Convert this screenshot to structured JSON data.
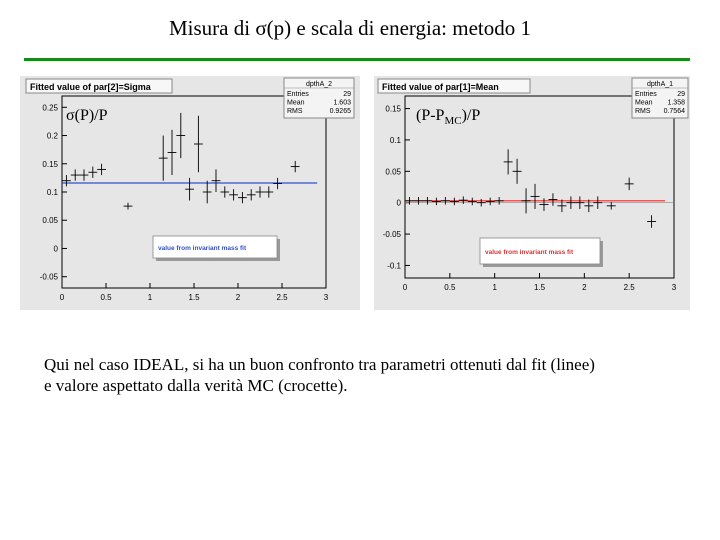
{
  "slide": {
    "title": "Misura di σ(p) e scala di energia: metodo 1",
    "caption_line1": "Qui nel caso IDEAL, si ha un buon confronto tra parametri ottenuti dal fit (linee)",
    "caption_line2": "e valore aspettato dalla verità MC (crocette)."
  },
  "colors": {
    "rule": "#1a8a1a",
    "frame_bg": "#e6e6e6",
    "fit_line_left": "#3050d0",
    "fit_line_right": "#e03030"
  },
  "chart_data": [
    {
      "type": "scatter",
      "title": "Fitted value of par[2]=Sigma",
      "ylabel": "σ(P)/P",
      "legend": "value from invariant mass fit",
      "stats": {
        "name": "dpthA_2",
        "rows": [
          [
            "Entries",
            "29"
          ],
          [
            "Mean",
            "1.603"
          ],
          [
            "RMS",
            "0.9265"
          ]
        ]
      },
      "xlim": [
        0,
        3
      ],
      "ylim": [
        -0.07,
        0.27
      ],
      "xticks": [
        "0",
        "0.5",
        "1",
        "1.5",
        "2",
        "2.5",
        "3"
      ],
      "yticks": [
        "-0.05",
        "0",
        "0.05",
        "0.1",
        "0.15",
        "0.2",
        "0.25"
      ],
      "fit_value": 0.116,
      "points": [
        {
          "x": 0.05,
          "y": 0.12,
          "ex": 0.05,
          "ey": 0.01
        },
        {
          "x": 0.15,
          "y": 0.13,
          "ex": 0.05,
          "ey": 0.01
        },
        {
          "x": 0.25,
          "y": 0.13,
          "ex": 0.05,
          "ey": 0.01
        },
        {
          "x": 0.35,
          "y": 0.135,
          "ex": 0.05,
          "ey": 0.01
        },
        {
          "x": 0.45,
          "y": 0.14,
          "ex": 0.05,
          "ey": 0.01
        },
        {
          "x": 0.75,
          "y": 0.075,
          "ex": 0.05,
          "ey": 0
        },
        {
          "x": 1.15,
          "y": 0.16,
          "ex": 0.05,
          "ey": 0.04
        },
        {
          "x": 1.25,
          "y": 0.17,
          "ex": 0.05,
          "ey": 0.04
        },
        {
          "x": 1.35,
          "y": 0.2,
          "ex": 0.05,
          "ey": 0.04
        },
        {
          "x": 1.45,
          "y": 0.105,
          "ex": 0.05,
          "ey": 0.02
        },
        {
          "x": 1.55,
          "y": 0.185,
          "ex": 0.05,
          "ey": 0.05
        },
        {
          "x": 1.65,
          "y": 0.1,
          "ex": 0.05,
          "ey": 0.02
        },
        {
          "x": 1.75,
          "y": 0.12,
          "ex": 0.05,
          "ey": 0.02
        },
        {
          "x": 1.85,
          "y": 0.1,
          "ex": 0.05,
          "ey": 0.01
        },
        {
          "x": 1.95,
          "y": 0.095,
          "ex": 0.05,
          "ey": 0.01
        },
        {
          "x": 2.05,
          "y": 0.09,
          "ex": 0.05,
          "ey": 0.01
        },
        {
          "x": 2.15,
          "y": 0.095,
          "ex": 0.05,
          "ey": 0.01
        },
        {
          "x": 2.25,
          "y": 0.1,
          "ex": 0.05,
          "ey": 0.01
        },
        {
          "x": 2.35,
          "y": 0.1,
          "ex": 0.05,
          "ey": 0.01
        },
        {
          "x": 2.45,
          "y": 0.115,
          "ex": 0.05,
          "ey": 0.01
        },
        {
          "x": 2.65,
          "y": 0.145,
          "ex": 0.05,
          "ey": 0.01
        }
      ]
    },
    {
      "type": "scatter",
      "title": "Fitted value of par[1]=Mean",
      "ylabel": "(P-P_MC)/P",
      "ylabel_main": "(P-P",
      "ylabel_sub": "MC",
      "ylabel_end": ")/P",
      "legend": "value from invariant mass fit",
      "stats": {
        "name": "dpthA_1",
        "rows": [
          [
            "Entries",
            "29"
          ],
          [
            "Mean",
            "1.358"
          ],
          [
            "RMS",
            "0.7564"
          ]
        ]
      },
      "xlim": [
        0,
        3
      ],
      "ylim": [
        -0.12,
        0.17
      ],
      "xticks": [
        "0",
        "0.5",
        "1",
        "1.5",
        "2",
        "2.5",
        "3"
      ],
      "yticks": [
        "-0.1",
        "-0.05",
        "0",
        "0.05",
        "0.1",
        "0.15"
      ],
      "fit_value": 0.003,
      "points": [
        {
          "x": 0.05,
          "y": 0.003,
          "ex": 0.05,
          "ey": 0
        },
        {
          "x": 0.15,
          "y": 0.003,
          "ex": 0.05,
          "ey": 0
        },
        {
          "x": 0.25,
          "y": 0.003,
          "ex": 0.05,
          "ey": 0
        },
        {
          "x": 0.35,
          "y": 0.002,
          "ex": 0.05,
          "ey": 0
        },
        {
          "x": 0.45,
          "y": 0.003,
          "ex": 0.05,
          "ey": 0
        },
        {
          "x": 0.55,
          "y": 0.002,
          "ex": 0.05,
          "ey": 0
        },
        {
          "x": 0.65,
          "y": 0.004,
          "ex": 0.05,
          "ey": 0
        },
        {
          "x": 0.75,
          "y": 0.002,
          "ex": 0.05,
          "ey": 0
        },
        {
          "x": 0.85,
          "y": 0.0,
          "ex": 0.05,
          "ey": 0
        },
        {
          "x": 0.95,
          "y": 0.002,
          "ex": 0.05,
          "ey": 0
        },
        {
          "x": 1.05,
          "y": 0.003,
          "ex": 0.05,
          "ey": 0
        },
        {
          "x": 1.15,
          "y": 0.065,
          "ex": 0.05,
          "ey": 0.02
        },
        {
          "x": 1.25,
          "y": 0.05,
          "ex": 0.05,
          "ey": 0.02
        },
        {
          "x": 1.35,
          "y": 0.003,
          "ex": 0.05,
          "ey": 0.02
        },
        {
          "x": 1.45,
          "y": 0.01,
          "ex": 0.05,
          "ey": 0.02
        },
        {
          "x": 1.55,
          "y": -0.003,
          "ex": 0.05,
          "ey": 0.01
        },
        {
          "x": 1.65,
          "y": 0.005,
          "ex": 0.05,
          "ey": 0.01
        },
        {
          "x": 1.75,
          "y": -0.005,
          "ex": 0.05,
          "ey": 0.01
        },
        {
          "x": 1.85,
          "y": 0.0,
          "ex": 0.05,
          "ey": 0.01
        },
        {
          "x": 1.95,
          "y": 0.0,
          "ex": 0.05,
          "ey": 0.01
        },
        {
          "x": 2.05,
          "y": -0.005,
          "ex": 0.05,
          "ey": 0.01
        },
        {
          "x": 2.15,
          "y": 0.0,
          "ex": 0.05,
          "ey": 0.01
        },
        {
          "x": 2.3,
          "y": -0.005,
          "ex": 0.05,
          "ey": 0.005
        },
        {
          "x": 2.5,
          "y": 0.03,
          "ex": 0.05,
          "ey": 0.01
        },
        {
          "x": 2.75,
          "y": -0.03,
          "ex": 0.05,
          "ey": 0.01
        }
      ]
    }
  ]
}
